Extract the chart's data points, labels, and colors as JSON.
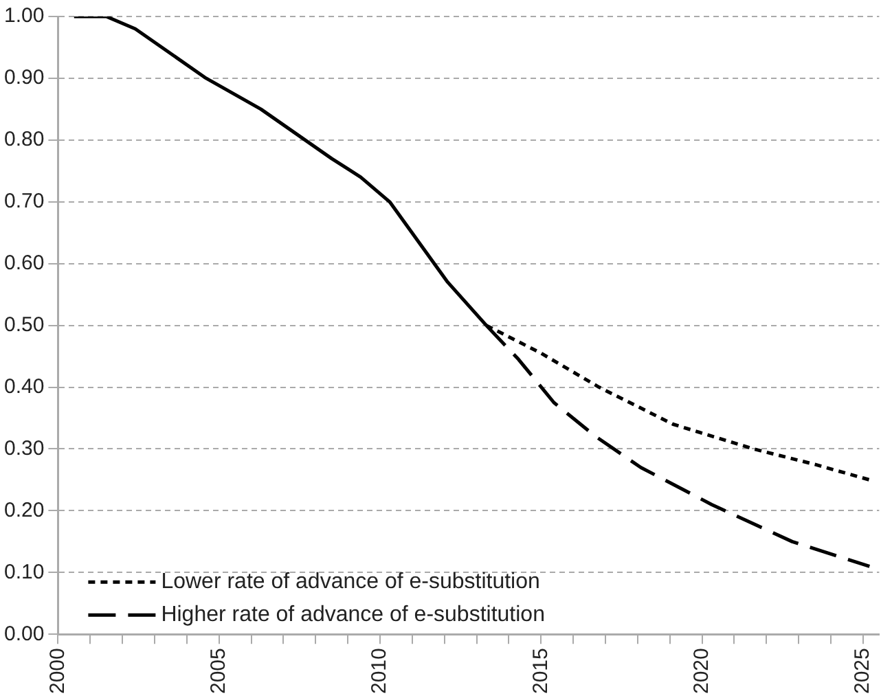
{
  "chart_data": {
    "type": "line",
    "xlim": [
      2000,
      2025.5
    ],
    "ylim": [
      0,
      1
    ],
    "xticks": [
      {
        "value": 2000,
        "label": "2000"
      },
      {
        "value": 2001,
        "label": null
      },
      {
        "value": 2002,
        "label": null
      },
      {
        "value": 2003,
        "label": null
      },
      {
        "value": 2004,
        "label": null
      },
      {
        "value": 2005,
        "label": "2005"
      },
      {
        "value": 2006,
        "label": null
      },
      {
        "value": 2007,
        "label": null
      },
      {
        "value": 2008,
        "label": null
      },
      {
        "value": 2009,
        "label": null
      },
      {
        "value": 2010,
        "label": "2010"
      },
      {
        "value": 2011,
        "label": null
      },
      {
        "value": 2012,
        "label": null
      },
      {
        "value": 2013,
        "label": null
      },
      {
        "value": 2014,
        "label": null
      },
      {
        "value": 2015,
        "label": "2015"
      },
      {
        "value": 2016,
        "label": null
      },
      {
        "value": 2017,
        "label": null
      },
      {
        "value": 2018,
        "label": null
      },
      {
        "value": 2019,
        "label": null
      },
      {
        "value": 2020,
        "label": "2020"
      },
      {
        "value": 2021,
        "label": null
      },
      {
        "value": 2022,
        "label": null
      },
      {
        "value": 2023,
        "label": null
      },
      {
        "value": 2024,
        "label": null
      },
      {
        "value": 2025,
        "label": "2025"
      }
    ],
    "yticks": [
      {
        "value": 0,
        "label": "0.00"
      },
      {
        "value": 0.1,
        "label": "0.10"
      },
      {
        "value": 0.2,
        "label": "0.20"
      },
      {
        "value": 0.3,
        "label": "0.30"
      },
      {
        "value": 0.4,
        "label": "0.40"
      },
      {
        "value": 0.5,
        "label": "0.50"
      },
      {
        "value": 0.6,
        "label": "0.60"
      },
      {
        "value": 0.7,
        "label": "0.70"
      },
      {
        "value": 0.8,
        "label": "0.80"
      },
      {
        "value": 0.9,
        "label": "0.90"
      },
      {
        "value": 1,
        "label": "1.00"
      }
    ],
    "grid": "y",
    "legend": "bottom left",
    "marker": "none",
    "series": [
      {
        "color": "#000000",
        "line_style": "solid",
        "x": [
          2000.5,
          2001.5,
          2002.4,
          2004.6,
          2006.3,
          2008.5,
          2009.4,
          2010.3,
          2012.1,
          2013.3
        ],
        "values": [
          1.0,
          1.0,
          0.98,
          0.9,
          0.85,
          0.77,
          0.74,
          0.7,
          0.57,
          0.5
        ]
      },
      {
        "name": "Lower rate of advance of e-substitution",
        "color": "#000000",
        "line_style": "dotted",
        "x": [
          2013.3,
          2015.0,
          2016.8,
          2019.1,
          2021.6,
          2023.5,
          2025.2
        ],
        "values": [
          0.5,
          0.455,
          0.4,
          0.34,
          0.3,
          0.275,
          0.25
        ]
      },
      {
        "name": "Higher rate of advance of e-substitution",
        "color": "#000000",
        "line_style": "dashed",
        "x": [
          2013.3,
          2014.3,
          2015.4,
          2016.7,
          2018.1,
          2020.3,
          2022.8,
          2025.2
        ],
        "values": [
          0.5,
          0.445,
          0.375,
          0.32,
          0.27,
          0.21,
          0.15,
          0.11
        ]
      }
    ]
  }
}
